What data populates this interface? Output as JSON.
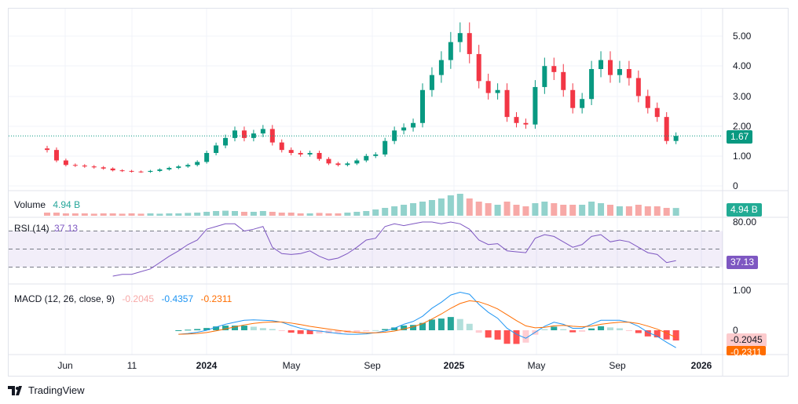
{
  "chart_data": {
    "type": "candlestick",
    "interval": "2 weeks (approx.)",
    "price": {
      "closes": [
        1.2,
        0.85,
        0.7,
        0.68,
        0.65,
        0.62,
        0.58,
        0.52,
        0.5,
        0.48,
        0.47,
        0.5,
        0.55,
        0.6,
        0.65,
        0.7,
        0.8,
        1.1,
        1.35,
        1.6,
        1.85,
        1.6,
        1.75,
        1.9,
        1.45,
        1.2,
        1.1,
        1.05,
        1.1,
        0.9,
        0.75,
        0.7,
        0.75,
        0.85,
        1.0,
        1.05,
        1.5,
        1.85,
        1.95,
        2.1,
        3.2,
        3.7,
        4.2,
        4.8,
        5.1,
        4.4,
        3.5,
        3.1,
        3.2,
        2.3,
        2.1,
        2.05,
        3.3,
        4.0,
        3.8,
        3.2,
        2.6,
        2.9,
        3.9,
        4.2,
        3.7,
        3.9,
        3.6,
        3.0,
        2.6,
        2.3,
        1.5,
        1.67
      ],
      "first_open": 1.25,
      "last_price": "1.67",
      "yticks": [
        "5.00",
        "4.00",
        "3.00",
        "2.00",
        "1.00",
        "0"
      ],
      "ylim": [
        0,
        5.4
      ]
    },
    "volume": {
      "label": "Volume",
      "value": "4.94 B",
      "values": [
        2,
        2,
        1.5,
        1.5,
        1.5,
        1.3,
        1.5,
        1.5,
        1.3,
        1.5,
        1.3,
        1.5,
        1.3,
        1.5,
        1.5,
        1.8,
        2,
        2.5,
        3,
        3.2,
        3,
        2.5,
        2.5,
        3,
        2.5,
        2,
        2,
        1.5,
        1.5,
        1.8,
        1.5,
        1.5,
        2,
        2.5,
        3,
        4,
        5,
        6,
        7,
        8,
        9,
        10,
        11,
        13,
        14,
        11,
        9,
        8,
        7,
        9,
        7,
        6,
        8,
        9,
        8,
        7,
        7,
        7,
        9,
        8,
        7,
        6,
        6,
        7,
        6,
        6,
        5,
        4.94
      ]
    },
    "rsi": {
      "label": "RSI (14)",
      "value": "37.13",
      "levels": [
        70,
        50,
        30
      ],
      "ytick": "80.00",
      "values": [
        null,
        null,
        null,
        null,
        null,
        null,
        null,
        20,
        22,
        22,
        25,
        28,
        35,
        42,
        48,
        55,
        60,
        72,
        75,
        78,
        78,
        70,
        72,
        75,
        52,
        45,
        44,
        45,
        48,
        42,
        38,
        40,
        45,
        52,
        60,
        62,
        75,
        78,
        76,
        78,
        80,
        80,
        78,
        80,
        78,
        72,
        60,
        55,
        56,
        48,
        47,
        46,
        62,
        66,
        64,
        58,
        52,
        55,
        64,
        66,
        58,
        60,
        58,
        52,
        46,
        44,
        35,
        37.13
      ]
    },
    "macd": {
      "label": "MACD (12, 26, close, 9)",
      "hist_value": "-0.2045",
      "macd_value": "-0.4357",
      "signal_value": "-0.2311",
      "yticks": [
        "1.00",
        "0"
      ],
      "macd_values": [
        -0.1,
        -0.08,
        -0.05,
        0.0,
        0.08,
        0.15,
        0.2,
        0.25,
        0.26,
        0.25,
        0.24,
        0.2,
        0.12,
        0.05,
        0.0,
        -0.02,
        -0.05,
        -0.08,
        -0.1,
        -0.1,
        -0.09,
        -0.06,
        -0.02,
        0.05,
        0.15,
        0.22,
        0.35,
        0.55,
        0.7,
        0.88,
        0.95,
        0.9,
        0.65,
        0.45,
        0.3,
        0.05,
        -0.1,
        -0.2,
        -0.05,
        0.1,
        0.2,
        0.15,
        0.05,
        0.05,
        0.15,
        0.25,
        0.25,
        0.25,
        0.2,
        0.1,
        -0.05,
        -0.15,
        -0.3,
        -0.4357
      ]
    },
    "xticks": [
      {
        "label": "Jun",
        "bold": false
      },
      {
        "label": "11",
        "bold": false
      },
      {
        "label": "2024",
        "bold": true
      },
      {
        "label": "May",
        "bold": false
      },
      {
        "label": "Sep",
        "bold": false
      },
      {
        "label": "2025",
        "bold": true
      },
      {
        "label": "May",
        "bold": false
      },
      {
        "label": "Sep",
        "bold": false
      },
      {
        "label": "2026",
        "bold": true
      }
    ]
  },
  "colors": {
    "up": "#089981",
    "down": "#f23645",
    "rsi": "#7e57c2",
    "macd": "#2962ff",
    "signal": "#ff6d00"
  },
  "brand": "TradingView"
}
